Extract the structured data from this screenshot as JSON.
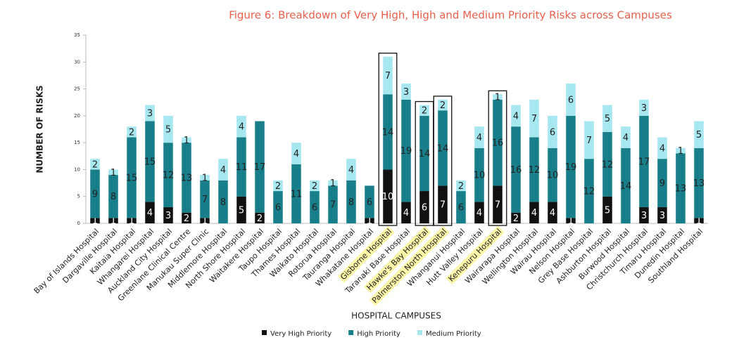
{
  "chart_data": {
    "type": "stacked_bar",
    "title": "Figure 6: Breakdown of Very High, High and Medium Priority Risks across Campuses",
    "x_label": "HOSPITAL CAMPUSES",
    "y_label": "NUMBER OF RISKS",
    "categories": [
      "Bay of Islands Hospital",
      "Dargaville Hospital",
      "Kaitaia Hospital",
      "Whangarei Hospital",
      "Auckland City Hospital",
      "Greenlane Clinical Centre",
      "Manukau Super Clinic",
      "Middlemore Hospital",
      "North Shore Hospital",
      "Waitakere Hospital",
      "Taupo Hospital",
      "Thames Hospital",
      "Waikato Hospital",
      "Rotorua Hospital",
      "Tauranga Hospital",
      "Whakatane Hospital",
      "Gisborne Hospital",
      "Taranaki Base Hospital",
      "Hawke's Bay Hospital",
      "Palmerston North Hospital",
      "Whanganui Hospital",
      "Hutt Valley Hospital",
      "Kenepuru Hospital",
      "Wairarapa Hospital",
      "Wellington Hospital",
      "Wairau Hospital",
      "Nelson Hospital",
      "Grey Base Hospital",
      "Ashburton Hospital",
      "Burwood Hospital",
      "Christchurch Hospital",
      "Timaru Hospital",
      "Dunedin Hospital",
      "Southland Hospital"
    ],
    "highlight": [
      false,
      false,
      false,
      false,
      false,
      false,
      false,
      false,
      false,
      false,
      false,
      false,
      false,
      false,
      false,
      false,
      true,
      false,
      true,
      true,
      false,
      false,
      true,
      false,
      false,
      false,
      false,
      false,
      false,
      false,
      false,
      false,
      false,
      false
    ],
    "series": [
      {
        "name": "Very High Priority",
        "color": "#111111",
        "label_color": "#ffffff",
        "values": [
          1,
          1,
          1,
          4,
          3,
          2,
          1,
          null,
          5,
          2,
          null,
          null,
          null,
          null,
          null,
          1,
          10,
          4,
          6,
          7,
          null,
          4,
          7,
          2,
          4,
          4,
          1,
          null,
          5,
          null,
          3,
          3,
          null,
          1
        ]
      },
      {
        "name": "High Priority",
        "color": "#177e8a",
        "label_color": "#222222",
        "values": [
          9,
          8,
          15,
          15,
          12,
          13,
          7,
          8,
          11,
          17,
          6,
          11,
          6,
          7,
          8,
          6,
          14,
          19,
          14,
          14,
          6,
          10,
          16,
          16,
          12,
          10,
          19,
          12,
          12,
          14,
          17,
          9,
          13,
          13
        ]
      },
      {
        "name": "Medium Priority",
        "color": "#a6e7f0",
        "label_color": "#222222",
        "values": [
          2,
          1,
          2,
          3,
          5,
          1,
          1,
          4,
          4,
          null,
          2,
          4,
          2,
          1,
          4,
          null,
          7,
          3,
          2,
          2,
          2,
          4,
          1,
          4,
          7,
          6,
          6,
          7,
          5,
          4,
          3,
          4,
          1,
          5
        ]
      }
    ],
    "ylim": [
      0,
      35
    ],
    "yticks": [
      0,
      5,
      10,
      15,
      20,
      25,
      30,
      35
    ],
    "legend": "bottom"
  }
}
